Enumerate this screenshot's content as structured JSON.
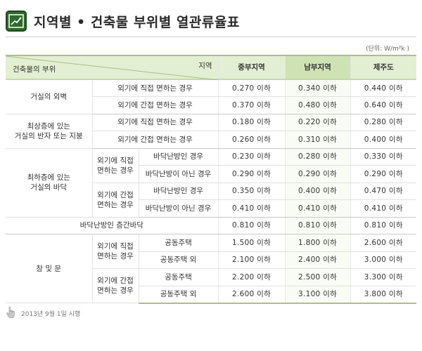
{
  "header": {
    "title": "지역별 • 건축물 부위별 열관류율표",
    "icon": "chart-trend-icon"
  },
  "unit_label": "(단위: W/m²k )",
  "table": {
    "corner": {
      "left": "건축물의 부위",
      "right": "지역"
    },
    "regions": [
      "중부지역",
      "남부지역",
      "제주도"
    ],
    "rows": [
      {
        "c1": "거실의 외벽",
        "c2": "외기에 직접 면하는 경우",
        "c3": "",
        "values": [
          "0.270 이하",
          "0.340 이하",
          "0.440 이하"
        ]
      },
      {
        "c1": "",
        "c2": "외기에 간접 면하는 경우",
        "c3": "",
        "values": [
          "0.370 이하",
          "0.480 이하",
          "0.640 이하"
        ]
      },
      {
        "c1": "최상층에 있는\n거실의 반자 또는 지붕",
        "c2": "외기에 직접 면하는 경우",
        "c3": "",
        "values": [
          "0.180 이하",
          "0.220 이하",
          "0.280 이하"
        ]
      },
      {
        "c1": "",
        "c2": "외기에 간접 면하는 경우",
        "c3": "",
        "values": [
          "0.260 이하",
          "0.310 이하",
          "0.400 이하"
        ]
      },
      {
        "c1": "최하층에 있는\n거실의 바닥",
        "c2": "외기에 직접\n면하는 경우",
        "c3": "바닥난방인 경우",
        "values": [
          "0.230 이하",
          "0.280 이하",
          "0.330 이하"
        ]
      },
      {
        "c1": "",
        "c2": "",
        "c3": "바닥난방이 아닌 경우",
        "values": [
          "0.290 이하",
          "0.290 이하",
          "0.290 이하"
        ]
      },
      {
        "c1": "",
        "c2": "외기에 간접\n면하는 경우",
        "c3": "바닥난방인 경우",
        "values": [
          "0.350 이하",
          "0.400 이하",
          "0.470 이하"
        ]
      },
      {
        "c1": "",
        "c2": "",
        "c3": "바닥난방이 아닌 경우",
        "values": [
          "0.410 이하",
          "0.410 이하",
          "0.410 이하"
        ]
      },
      {
        "c1": "바닥난방인 층간바닥",
        "c2": "",
        "c3": "",
        "values": [
          "0.810 이하",
          "0.810 이하",
          "0.810 이하"
        ]
      },
      {
        "c1": "창 및 문",
        "c2": "외기에 직접\n면하는 경우",
        "c3": "공동주택",
        "values": [
          "1.500 이하",
          "1.800 이하",
          "2.600 이하"
        ]
      },
      {
        "c1": "",
        "c2": "",
        "c3": "공동주택 외",
        "values": [
          "2.100 이하",
          "2.400 이하",
          "3.000 이하"
        ]
      },
      {
        "c1": "",
        "c2": "외기에 간접\n면하는 경우",
        "c3": "공동주택",
        "values": [
          "2.200 이하",
          "2.500 이하",
          "3.300 이하"
        ]
      },
      {
        "c1": "",
        "c2": "",
        "c3": "공동주택 외",
        "values": [
          "2.600 이하",
          "3.100 이하",
          "3.800 이하"
        ]
      }
    ]
  },
  "footnote": {
    "text": "2013년 9월 1일 시행",
    "icon": "pointing-hand-icon"
  },
  "colors": {
    "header_bg": "#e3efd2",
    "south_header_bg": "#cfe2b4",
    "accent": "#2f6a2b"
  }
}
